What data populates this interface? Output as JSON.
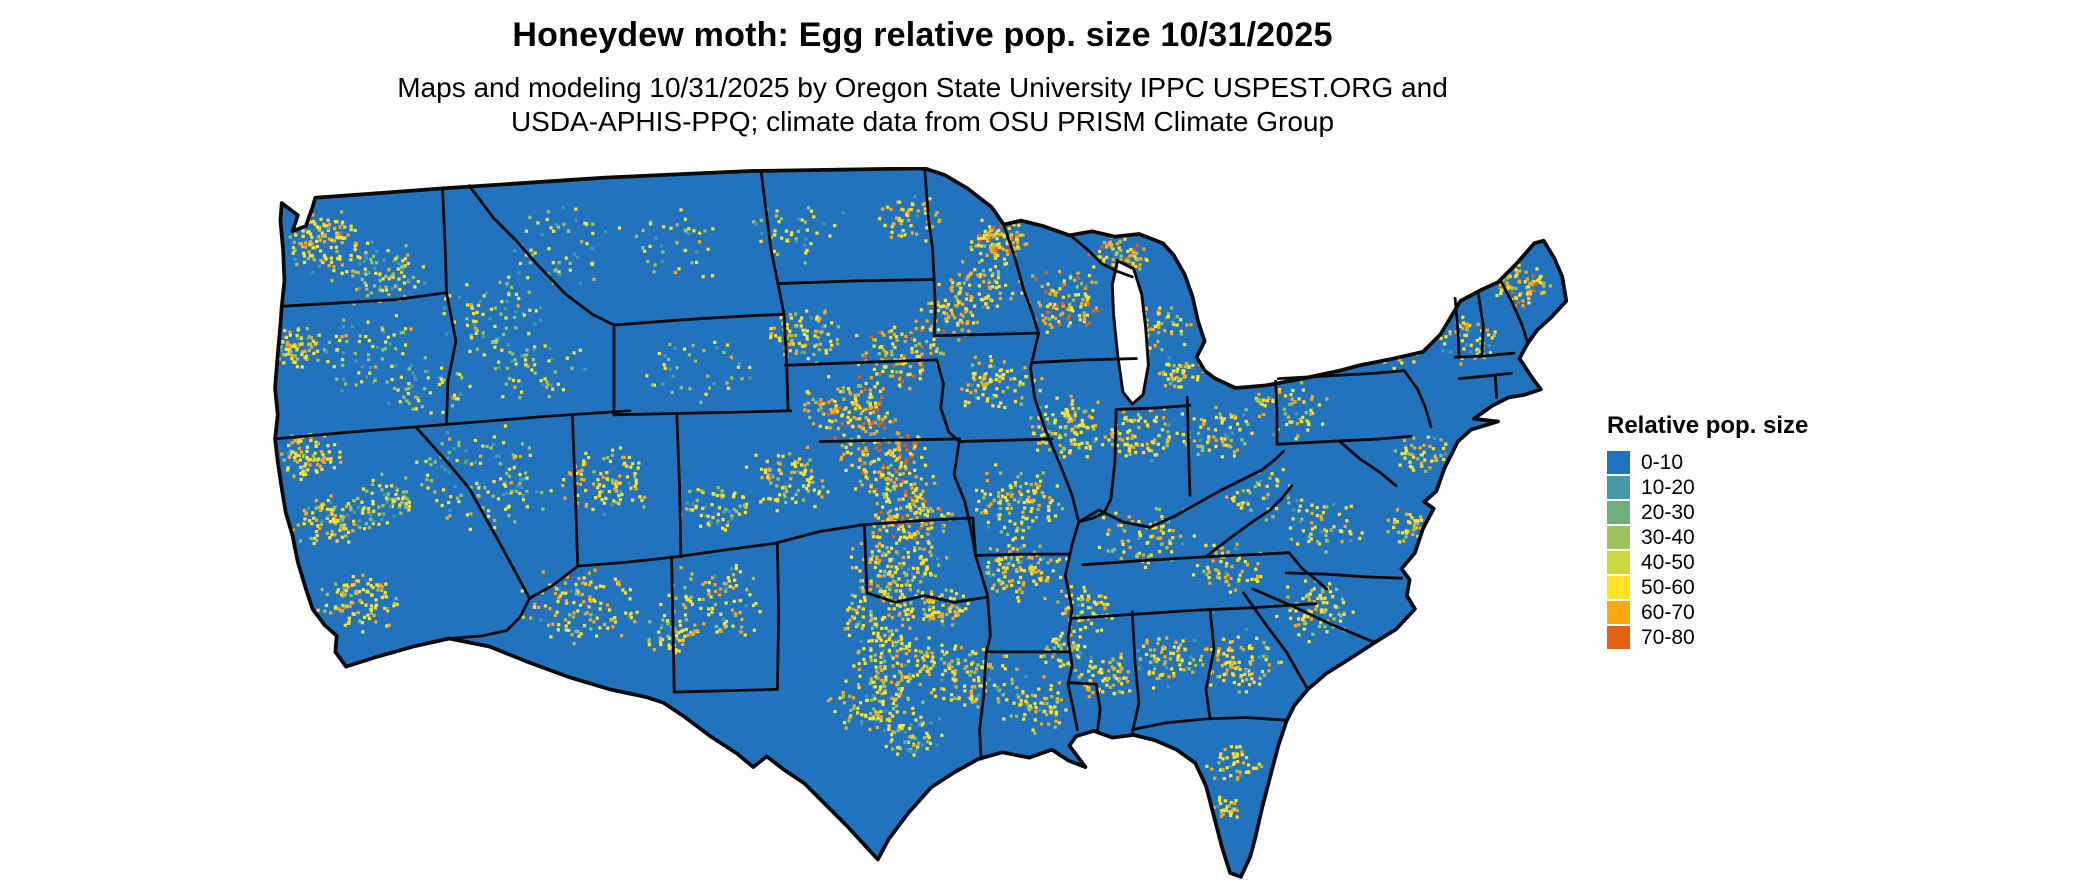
{
  "title": "Honeydew moth: Egg relative pop. size 10/31/2025",
  "subtitle_line1": "Maps and modeling 10/31/2025 by Oregon State University IPPC USPEST.ORG and",
  "subtitle_line2": "USDA-APHIS-PPQ; climate data from OSU PRISM Climate Group",
  "map": {
    "region": "Continental United States",
    "base_color": "#2173bd",
    "border_color": "#0a0a0a",
    "water_color": "#ffffff"
  },
  "legend": {
    "title": "Relative pop. size",
    "items": [
      {
        "label": "0-10",
        "color": "#2173bd"
      },
      {
        "label": "10-20",
        "color": "#4898a8"
      },
      {
        "label": "20-30",
        "color": "#6fae7e"
      },
      {
        "label": "30-40",
        "color": "#9cc25c"
      },
      {
        "label": "40-50",
        "color": "#ccd93e"
      },
      {
        "label": "50-60",
        "color": "#ffe226"
      },
      {
        "label": "60-70",
        "color": "#fda812"
      },
      {
        "label": "70-80",
        "color": "#e4620e"
      }
    ]
  }
}
